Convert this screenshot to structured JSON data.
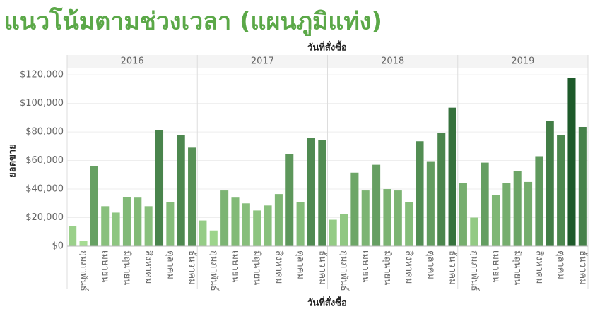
{
  "chart_data": {
    "type": "bar",
    "title": "แนวโน้มตามช่วงเวลา (แผนภูมิแท่ง)",
    "x_label": "วันที่สั่งซื้อ",
    "y_label": "ยอดขาย",
    "ylim": [
      0,
      125000
    ],
    "yticks": [
      {
        "value": 0,
        "label": "$0"
      },
      {
        "value": 20000,
        "label": "$20,000"
      },
      {
        "value": 40000,
        "label": "$40,000"
      },
      {
        "value": 60000,
        "label": "$60,000"
      },
      {
        "value": 80000,
        "label": "$80,000"
      },
      {
        "value": 100000,
        "label": "$100,000"
      },
      {
        "value": 120000,
        "label": "$120,000"
      }
    ],
    "grid": true,
    "color_scale": [
      "#a6dc93",
      "#1d5a2a"
    ],
    "panels": [
      {
        "label": "2016",
        "categories": [
          null,
          "กุมภาพันธ์",
          null,
          "เมษายน",
          null,
          "มิถุนายน",
          null,
          "สิงหาคม",
          null,
          "ตุลาคม",
          null,
          "ธันวาคม"
        ],
        "values": [
          14000,
          3800,
          56000,
          28000,
          23500,
          34500,
          34000,
          28000,
          81500,
          31000,
          78000,
          69000
        ]
      },
      {
        "label": "2017",
        "categories": [
          null,
          "กุมภาพันธ์",
          null,
          "เมษายน",
          null,
          "มิถุนายน",
          null,
          "สิงหาคม",
          null,
          "ตุลาคม",
          null,
          "ธันวาคม"
        ],
        "values": [
          18000,
          11000,
          39000,
          34000,
          30000,
          25000,
          28500,
          36500,
          64500,
          31000,
          76000,
          74500
        ]
      },
      {
        "label": "2018",
        "categories": [
          null,
          "กุมภาพันธ์",
          null,
          "เมษายน",
          null,
          "มิถุนายน",
          null,
          "สิงหาคม",
          null,
          "ตุลาคม",
          null,
          "ธันวาคม"
        ],
        "values": [
          18500,
          22500,
          51500,
          39000,
          57000,
          40000,
          39000,
          31000,
          73500,
          59500,
          79500,
          97000
        ]
      },
      {
        "label": "2019",
        "categories": [
          null,
          "กุมภาพันธ์",
          null,
          "เมษายน",
          null,
          "มิถุนายน",
          null,
          "สิงหาคม",
          null,
          "ตุลาคม",
          null,
          "ธันวาคม"
        ],
        "values": [
          44000,
          20000,
          58500,
          36000,
          44000,
          52500,
          45000,
          63000,
          87500,
          78000,
          118000,
          83500
        ]
      }
    ]
  }
}
